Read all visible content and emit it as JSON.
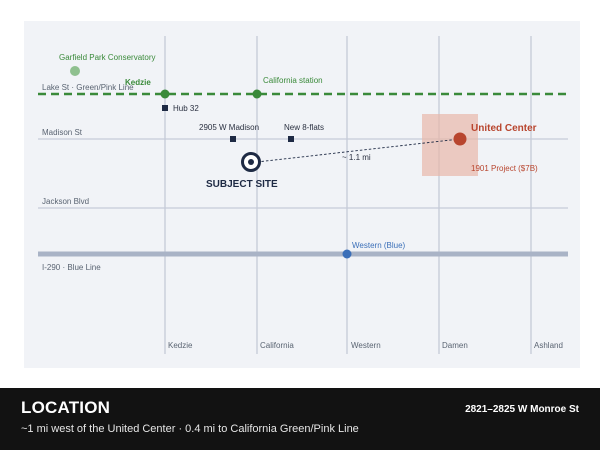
{
  "map": {
    "streets_horizontal": [
      "Lake St · Green/Pink Line",
      "Madison St",
      "Jackson Blvd",
      "I-290 · Blue Line"
    ],
    "streets_vertical": [
      "Kedzie",
      "California",
      "Western",
      "Damen",
      "Ashland"
    ],
    "stations": {
      "kedzie": "Kedzie",
      "california": "California station",
      "western": "Western (Blue)"
    },
    "pois": {
      "garfield": "Garfield Park Conservatory",
      "hub32": "Hub 32",
      "madison2905": "2905 W Madison",
      "new8flats": "New 8-flats"
    },
    "subject": "SUBJECT SITE",
    "united_center": "United Center",
    "project_1901": "1901 Project ($7B)",
    "distance": "~ 1.1 mi",
    "colors": {
      "green_line": "#3a8a3a",
      "blue_line": "#3b6fb8",
      "united_center": "#b8452e",
      "subject": "#1e2a44",
      "expressway": "#a9b3c6"
    }
  },
  "footer": {
    "title": "LOCATION",
    "subtitle": "~1 mi west of the United Center · 0.4 mi to California Green/Pink Line",
    "address": "2821–2825 W Monroe St"
  }
}
